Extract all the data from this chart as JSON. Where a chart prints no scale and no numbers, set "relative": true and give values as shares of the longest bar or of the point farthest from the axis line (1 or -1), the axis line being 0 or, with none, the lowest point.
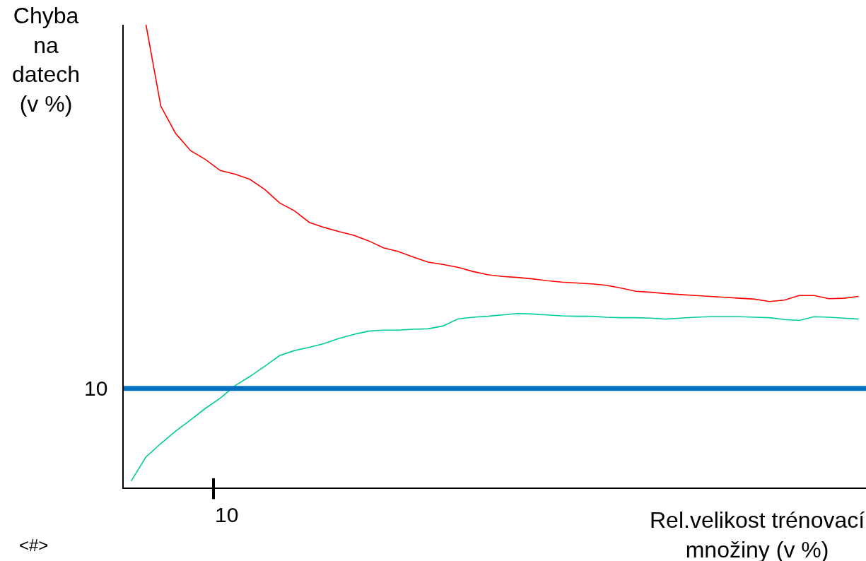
{
  "chart_data": {
    "type": "line",
    "relative": true,
    "ylabel": "Chyba\nna\ndatech\n(v %)",
    "xlabel": "Rel.velikost trénovací\nmnožiny (v %)",
    "marker": "none",
    "line_style": "solid",
    "categories": [
      null,
      null,
      null,
      null,
      null,
      null,
      null,
      null,
      null,
      null,
      null,
      null,
      null,
      null,
      null,
      null,
      null,
      null,
      null,
      null,
      null,
      null,
      null,
      null,
      null,
      null,
      null,
      null,
      null,
      null,
      null,
      null,
      null,
      null,
      null,
      null,
      null,
      null,
      null,
      null,
      null,
      null,
      null,
      null,
      null,
      null,
      null,
      null,
      null,
      null
    ],
    "series": [
      {
        "color": "#ff0000",
        "values": [
          null,
          1.0,
          0.824,
          0.765,
          0.728,
          0.709,
          0.685,
          0.677,
          0.666,
          0.644,
          0.615,
          0.598,
          0.573,
          0.562,
          0.553,
          0.545,
          0.533,
          0.518,
          0.51,
          0.498,
          0.487,
          0.482,
          0.476,
          0.467,
          0.46,
          0.456,
          0.454,
          0.451,
          0.447,
          0.444,
          0.442,
          0.44,
          0.437,
          0.431,
          0.424,
          0.422,
          0.419,
          0.417,
          0.415,
          0.413,
          0.411,
          0.409,
          0.407,
          0.402,
          0.405,
          0.415,
          0.415,
          0.408,
          0.409,
          0.413
        ]
      },
      {
        "color": "#00cc99",
        "values": [
          0.014,
          0.066,
          0.095,
          0.122,
          0.146,
          0.171,
          0.193,
          0.22,
          0.24,
          0.262,
          0.285,
          0.296,
          0.303,
          0.311,
          0.322,
          0.331,
          0.338,
          0.34,
          0.34,
          0.342,
          0.343,
          0.349,
          0.364,
          0.368,
          0.37,
          0.373,
          0.376,
          0.375,
          0.373,
          0.371,
          0.37,
          0.37,
          0.368,
          0.367,
          0.367,
          0.366,
          0.364,
          0.366,
          0.368,
          0.369,
          0.369,
          0.369,
          0.368,
          0.367,
          0.363,
          0.361,
          0.369,
          0.368,
          0.366,
          0.364
        ]
      }
    ],
    "ref_lines": [
      {
        "axis": "y",
        "value": 0.214,
        "color": "#0070c0"
      }
    ],
    "annotations": [
      "10",
      "10",
      "<#>"
    ]
  }
}
